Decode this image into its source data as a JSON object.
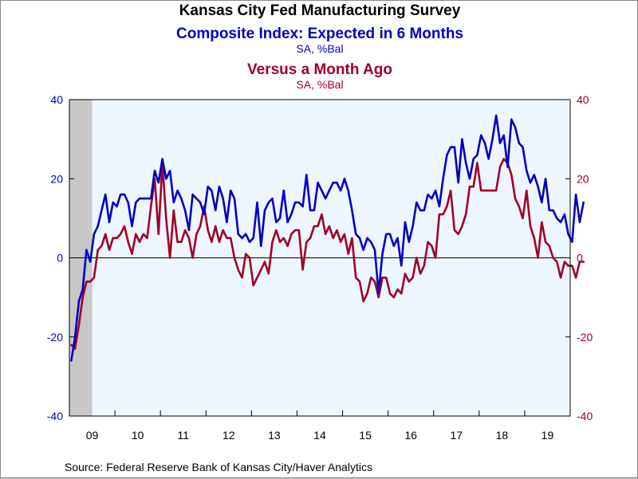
{
  "titles": {
    "main": "Kansas City Fed Manufacturing Survey",
    "series1_title": "Composite Index: Expected in 6 Months",
    "series1_sub": "SA, %Bal",
    "series2_title": "Versus a Month Ago",
    "series2_sub": "SA, %Bal"
  },
  "source": "Source:  Federal Reserve Bank of Kansas City/Haver Analytics",
  "colors": {
    "series1": "#0000c0",
    "series2": "#a00028",
    "plot_bg": "#eef6ff",
    "recession": "#c8c8c8"
  },
  "chart_data": {
    "type": "line",
    "x_start": "2009-01",
    "frequency": "monthly",
    "x_tick_labels": [
      "09",
      "10",
      "11",
      "12",
      "13",
      "14",
      "15",
      "16",
      "17",
      "18",
      "19"
    ],
    "left_axis": {
      "ylim": [
        -40,
        40
      ],
      "ticks": [
        "40",
        "20",
        "0",
        "-20",
        "-40"
      ],
      "color": "#0000c0"
    },
    "right_axis": {
      "ylim": [
        -40,
        40
      ],
      "ticks": [
        "40",
        "20",
        "0",
        "-20",
        "-40"
      ],
      "color": "#a00028"
    },
    "zero_line": true,
    "recession_shading": [
      {
        "start": "2009-01",
        "end": "2009-06"
      }
    ],
    "series": [
      {
        "name": "Composite Index: Expected in 6 Months",
        "axis": "left",
        "values": [
          -26,
          -20,
          -11,
          -8,
          2,
          -1,
          6,
          8,
          12,
          16,
          9,
          14,
          13,
          16,
          16,
          14,
          8,
          14,
          15,
          15,
          15,
          15,
          22,
          19,
          25,
          20,
          22,
          14,
          17,
          15,
          12,
          7,
          16,
          15,
          14,
          11,
          18,
          17,
          12,
          18,
          15,
          9,
          17,
          15,
          6,
          5,
          6,
          4,
          5,
          14,
          3,
          12,
          14,
          15,
          9,
          10,
          17,
          9,
          11,
          14,
          14,
          13,
          21,
          12,
          12,
          19,
          17,
          15,
          17,
          19,
          19,
          17,
          20,
          17,
          12,
          6,
          5,
          2,
          5,
          4,
          2,
          -9,
          1,
          6,
          6,
          3,
          5,
          -2,
          9,
          4,
          8,
          14,
          12,
          12,
          16,
          15,
          17,
          13,
          20,
          26,
          28,
          28,
          19,
          30,
          24,
          20,
          25,
          26,
          31,
          29,
          25,
          30,
          36,
          29,
          31,
          23,
          35,
          33,
          29,
          28,
          22,
          19,
          21,
          18,
          14,
          20,
          12,
          12,
          10,
          9,
          11,
          6,
          4,
          16,
          9,
          14
        ]
      },
      {
        "name": "Versus a Month Ago",
        "axis": "right",
        "values": [
          -22,
          -23,
          -17,
          -10,
          -6,
          -6,
          -5,
          2,
          3,
          6,
          2,
          5,
          5,
          6,
          8,
          4,
          1,
          6,
          4,
          6,
          5,
          13,
          20,
          6,
          24,
          10,
          0,
          12,
          4,
          4,
          7,
          5,
          0,
          6,
          8,
          13,
          7,
          4,
          8,
          4,
          7,
          5,
          5,
          0,
          -3,
          -5,
          1,
          0,
          -7,
          -5,
          -3,
          -1,
          -4,
          4,
          7,
          4,
          5,
          3,
          6,
          7,
          7,
          -3,
          4,
          5,
          8,
          8,
          11,
          6,
          8,
          5,
          7,
          4,
          6,
          1,
          5,
          -5,
          -6,
          -11,
          -9,
          -5,
          -6,
          -10,
          -5,
          -5,
          -9,
          -10,
          -8,
          -9,
          -4,
          -6,
          -5,
          0,
          -4,
          -2,
          4,
          3,
          0,
          11,
          11,
          13,
          17,
          7,
          6,
          8,
          11,
          18,
          18,
          24,
          17,
          17,
          17,
          17,
          17,
          23,
          25,
          24,
          21,
          15,
          13,
          10,
          17,
          8,
          5,
          0,
          9,
          4,
          3,
          0,
          -1,
          -5,
          -1,
          -2,
          -2,
          -5,
          -1,
          -1
        ]
      }
    ]
  }
}
